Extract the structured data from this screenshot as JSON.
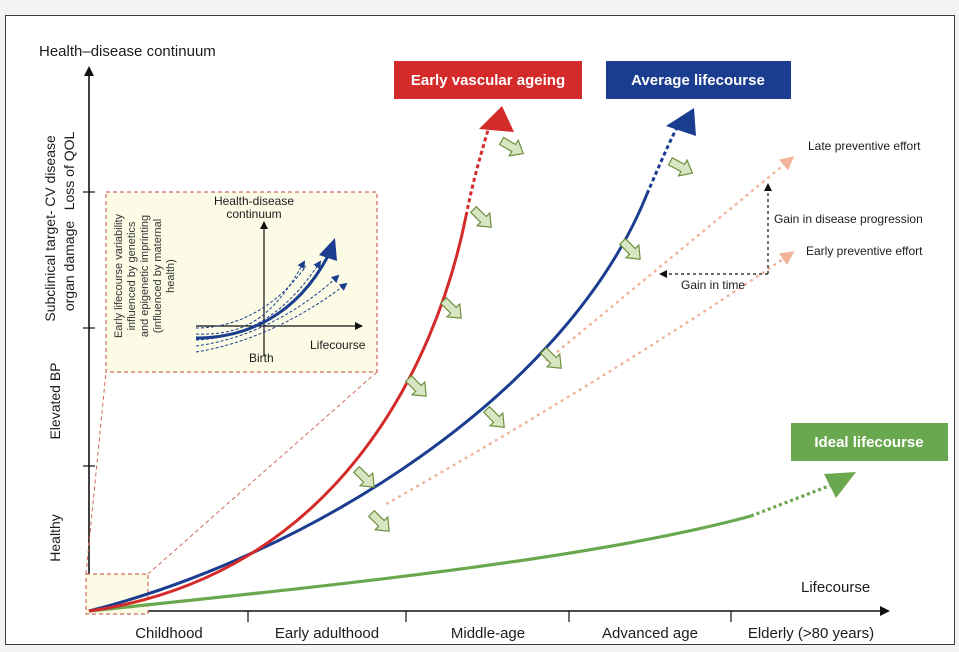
{
  "y_axis_title": "Health–disease continuum",
  "x_axis_title": "Lifecourse",
  "y_levels": [
    {
      "line1": "CV disease",
      "line2": "Loss of QOL"
    },
    {
      "line1": "Subclinical target-",
      "line2": "organ damage"
    },
    {
      "line1": "Elevated BP",
      "line2": ""
    },
    {
      "line1": "Healthy",
      "line2": ""
    }
  ],
  "x_stages": [
    "Childhood",
    "Early adulthood",
    "Middle-age",
    "Advanced age",
    "Elderly (>80 years)"
  ],
  "curves": {
    "early": {
      "label": "Early vascular ageing",
      "color": "#d42a2a"
    },
    "average": {
      "label": "Average lifecourse",
      "color": "#1a3d8f"
    },
    "ideal": {
      "label": "Ideal lifecourse",
      "color": "#6aa84f"
    }
  },
  "annotations": {
    "late_effort": "Late preventive effort",
    "early_effort": "Early preventive effort",
    "gain_progression": "Gain in disease progression",
    "gain_time": "Gain in time"
  },
  "inset": {
    "y_title_line1": "Health-disease",
    "y_title_line2": "continuum",
    "x_title": "Lifecourse",
    "origin_label": "Birth",
    "side_text": [
      "Early lifecourse variability",
      "influenced by genetics",
      "and epigenetic imprinting",
      "(influenced by maternal",
      "health)"
    ]
  },
  "colors": {
    "accent_arrow_fill": "#d9e6c3",
    "accent_arrow_stroke": "#6e8f3e",
    "effort_line": "#f0b49a",
    "inset_bg": "#fbfbe6",
    "inset_border": "#d06a5a"
  }
}
